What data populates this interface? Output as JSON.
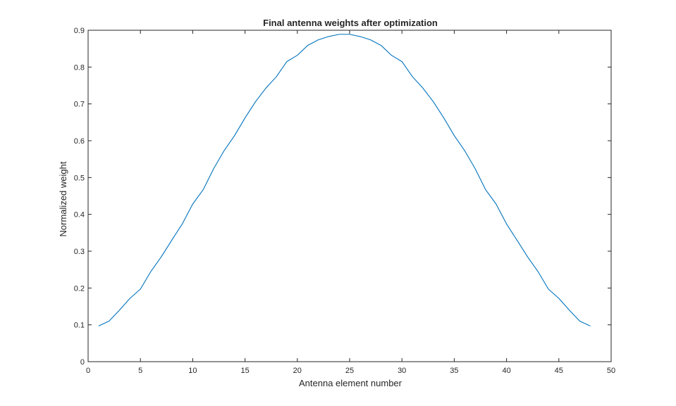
{
  "chart_data": {
    "type": "line",
    "title": "Final antenna weights after optimization",
    "xlabel": "Antenna element number",
    "ylabel": "Normalized weight",
    "xlim": [
      0,
      50
    ],
    "ylim": [
      0,
      0.9
    ],
    "xticks": [
      0,
      5,
      10,
      15,
      20,
      25,
      30,
      35,
      40,
      45,
      50
    ],
    "yticks": [
      0,
      0.1,
      0.2,
      0.3,
      0.4,
      0.5,
      0.6,
      0.7,
      0.8,
      0.9
    ],
    "xtick_labels": [
      "0",
      "5",
      "10",
      "15",
      "20",
      "25",
      "30",
      "35",
      "40",
      "45",
      "50"
    ],
    "ytick_labels": [
      "0",
      "0.1",
      "0.2",
      "0.3",
      "0.4",
      "0.5",
      "0.6",
      "0.7",
      "0.8",
      "0.9"
    ],
    "grid": false,
    "series": [
      {
        "color": "#0072BD",
        "x": [
          1,
          2,
          3,
          4,
          5,
          6,
          7,
          8,
          9,
          10,
          11,
          12,
          13,
          14,
          15,
          16,
          17,
          18,
          19,
          20,
          21,
          22,
          23,
          24,
          25,
          26,
          27,
          28,
          29,
          30,
          31,
          32,
          33,
          34,
          35,
          36,
          37,
          38,
          39,
          40,
          41,
          42,
          43,
          44,
          45,
          46,
          47,
          48
        ],
        "values": [
          0.097,
          0.11,
          0.14,
          0.172,
          0.197,
          0.245,
          0.285,
          0.33,
          0.374,
          0.428,
          0.467,
          0.524,
          0.573,
          0.614,
          0.662,
          0.706,
          0.743,
          0.774,
          0.815,
          0.832,
          0.859,
          0.874,
          0.883,
          0.889,
          0.889,
          0.883,
          0.874,
          0.859,
          0.832,
          0.815,
          0.774,
          0.743,
          0.706,
          0.662,
          0.614,
          0.573,
          0.524,
          0.467,
          0.428,
          0.374,
          0.33,
          0.285,
          0.245,
          0.197,
          0.172,
          0.14,
          0.11,
          0.097
        ]
      }
    ]
  }
}
